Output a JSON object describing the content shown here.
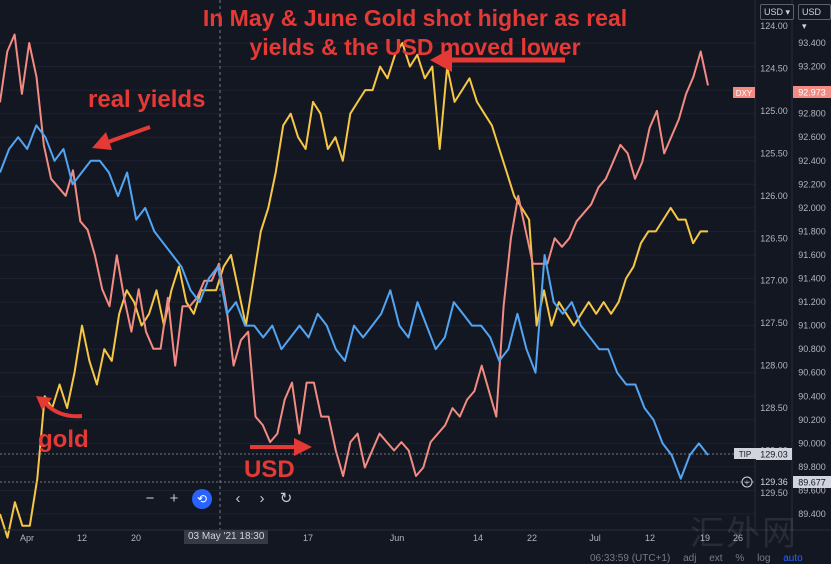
{
  "annotations": {
    "headline_line1": "In May & June Gold shot higher as real",
    "headline_line2": "yields & the USD moved lower",
    "real_yields": "real yields",
    "gold": "gold",
    "usd": "USD"
  },
  "axis_selectors": {
    "left": "USD",
    "right": "USD"
  },
  "toolbar": {
    "zoom_out": "−",
    "zoom_in": "+",
    "reset": "⟲",
    "back": "‹",
    "forward": "›",
    "refresh": "↻"
  },
  "crosshair_date": "03 May '21   18:30",
  "watermark": "汇外网",
  "status": {
    "time": "06:33:59 (UTC+1)",
    "adj": "adj",
    "ext": "ext",
    "pct": "%",
    "log": "log",
    "auto": "auto"
  },
  "colors": {
    "background": "#131722",
    "gold": "#f6c744",
    "real_yields": "#f28b82",
    "usd": "#52a5f2",
    "grid": "#1e2230",
    "annotation": "#e53935"
  },
  "chart_data": {
    "type": "line",
    "x_tick_labels": [
      "Apr",
      "12",
      "20",
      "03 May '21",
      "17",
      "Jun",
      "14",
      "22",
      "Jul",
      "12",
      "19",
      "26"
    ],
    "axes": {
      "tip_axis": {
        "ticks": [
          "124.00",
          "124.50",
          "125.00",
          "125.50",
          "126.00",
          "126.50",
          "127.00",
          "127.50",
          "128.00",
          "128.50",
          "129.00",
          "129.50"
        ],
        "inverted": true,
        "current_label": "TIP",
        "current_value": "129.03",
        "secondary_value": "129.36"
      },
      "dxy_axis": {
        "ticks": [
          "93.400",
          "93.200",
          "93.000",
          "92.800",
          "92.600",
          "92.400",
          "92.200",
          "92.000",
          "91.800",
          "91.600",
          "91.400",
          "91.200",
          "91.000",
          "90.800",
          "90.600",
          "90.400",
          "90.200",
          "90.000",
          "89.800",
          "89.600",
          "89.400"
        ],
        "current_label": "DXY",
        "current_value": "92.973",
        "secondary_value": "89.677"
      }
    },
    "series": [
      {
        "name": "gold",
        "color": "#f6c744",
        "values": [
          89.4,
          89.2,
          89.5,
          89.3,
          89.3,
          89.7,
          90.4,
          90.3,
          90.5,
          90.3,
          90.6,
          91.0,
          90.7,
          90.5,
          90.8,
          90.7,
          91.1,
          91.3,
          91.2,
          91.0,
          91.1,
          91.3,
          91.0,
          91.3,
          91.5,
          91.2,
          91.1,
          91.3,
          91.3,
          91.3,
          91.5,
          91.6,
          91.3,
          91.0,
          91.4,
          91.8,
          92.0,
          92.3,
          92.7,
          92.8,
          92.6,
          92.5,
          92.9,
          92.8,
          92.5,
          92.6,
          92.4,
          92.8,
          92.9,
          93.0,
          93.0,
          93.2,
          93.1,
          93.3,
          93.4,
          93.2,
          93.3,
          93.1,
          93.2,
          92.5,
          93.2,
          92.9,
          93.0,
          93.1,
          92.9,
          92.8,
          92.7,
          92.5,
          92.3,
          92.1,
          92.0,
          91.9,
          91.0,
          91.3,
          91.0,
          91.2,
          91.1,
          91.0,
          91.1,
          91.2,
          91.1,
          91.2,
          91.1,
          91.2,
          91.4,
          91.5,
          91.7,
          91.8,
          91.8,
          91.9,
          92.0,
          91.9,
          91.9,
          91.7,
          91.8,
          91.8
        ],
        "series_values_unit": "DXY axis"
      },
      {
        "name": "real yields",
        "color": "#f28b82",
        "values": [
          124.9,
          124.3,
          124.1,
          124.8,
          124.2,
          124.6,
          125.4,
          125.8,
          125.9,
          126.0,
          125.7,
          126.3,
          126.4,
          126.7,
          127.1,
          127.3,
          126.7,
          127.2,
          127.6,
          127.1,
          127.6,
          127.8,
          127.8,
          127.2,
          128.0,
          127.3,
          127.3,
          127.2,
          127.0,
          127.0,
          126.8,
          127.3,
          128.0,
          127.7,
          127.6,
          128.6,
          128.7,
          128.9,
          128.8,
          128.4,
          128.2,
          128.8,
          128.2,
          128.2,
          128.6,
          128.6,
          129.0,
          129.3,
          128.9,
          128.8,
          129.2,
          129.0,
          128.8,
          128.9,
          129.0,
          128.9,
          129.0,
          129.3,
          129.2,
          128.9,
          128.8,
          128.7,
          128.5,
          128.6,
          128.4,
          128.3,
          128.0,
          128.3,
          128.6,
          127.3,
          126.5,
          126.0,
          126.4,
          126.8,
          126.8,
          126.8,
          126.5,
          126.6,
          126.5,
          126.3,
          126.2,
          126.1,
          125.9,
          125.8,
          125.6,
          125.4,
          125.5,
          125.8,
          125.6,
          125.2,
          125.0,
          125.5,
          125.3,
          125.1,
          124.8,
          124.6,
          124.3,
          124.7
        ],
        "series_values_unit": "TIP axis"
      },
      {
        "name": "USD",
        "color": "#52a5f2",
        "values": [
          92.3,
          92.5,
          92.6,
          92.5,
          92.7,
          92.6,
          92.4,
          92.5,
          92.2,
          92.3,
          92.4,
          92.4,
          92.3,
          92.1,
          92.3,
          91.9,
          92.0,
          91.8,
          91.7,
          91.6,
          91.5,
          91.3,
          91.2,
          91.4,
          91.5,
          91.1,
          91.2,
          91.0,
          91.0,
          90.9,
          91.0,
          90.8,
          90.9,
          91.0,
          90.9,
          91.1,
          91.0,
          90.8,
          90.7,
          91.0,
          90.9,
          91.0,
          91.1,
          91.3,
          91.0,
          90.9,
          91.2,
          91.0,
          90.8,
          90.9,
          91.2,
          91.1,
          91.0,
          91.0,
          90.9,
          90.7,
          90.8,
          91.1,
          90.8,
          90.6,
          91.6,
          91.2,
          91.1,
          91.2,
          91.0,
          90.9,
          90.8,
          90.8,
          90.6,
          90.5,
          90.5,
          90.3,
          90.2,
          90.0,
          89.9,
          89.7,
          89.9,
          90.0,
          89.9
        ],
        "series_values_unit": "DXY axis"
      }
    ]
  }
}
